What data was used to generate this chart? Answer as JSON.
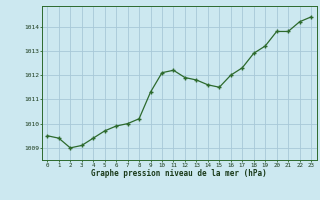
{
  "x": [
    0,
    1,
    2,
    3,
    4,
    5,
    6,
    7,
    8,
    9,
    10,
    11,
    12,
    13,
    14,
    15,
    16,
    17,
    18,
    19,
    20,
    21,
    22,
    23
  ],
  "y": [
    1009.5,
    1009.4,
    1009.0,
    1009.1,
    1009.4,
    1009.7,
    1009.9,
    1010.0,
    1010.2,
    1011.3,
    1012.1,
    1012.2,
    1011.9,
    1011.8,
    1011.6,
    1011.5,
    1012.0,
    1012.3,
    1012.9,
    1013.2,
    1013.8,
    1013.8,
    1014.2,
    1014.4
  ],
  "line_color": "#2d6a2d",
  "marker_color": "#2d6a2d",
  "bg_color": "#cce8f0",
  "grid_color": "#a8c8d8",
  "xlabel": "Graphe pression niveau de la mer (hPa)",
  "xlabel_color": "#1a3a1a",
  "tick_label_color": "#1a3a1a",
  "ylim": [
    1008.5,
    1014.85
  ],
  "yticks": [
    1009,
    1010,
    1011,
    1012,
    1013,
    1014
  ],
  "xticks": [
    0,
    1,
    2,
    3,
    4,
    5,
    6,
    7,
    8,
    9,
    10,
    11,
    12,
    13,
    14,
    15,
    16,
    17,
    18,
    19,
    20,
    21,
    22,
    23
  ],
  "spine_color": "#2d6a2d",
  "font_family": "monospace"
}
